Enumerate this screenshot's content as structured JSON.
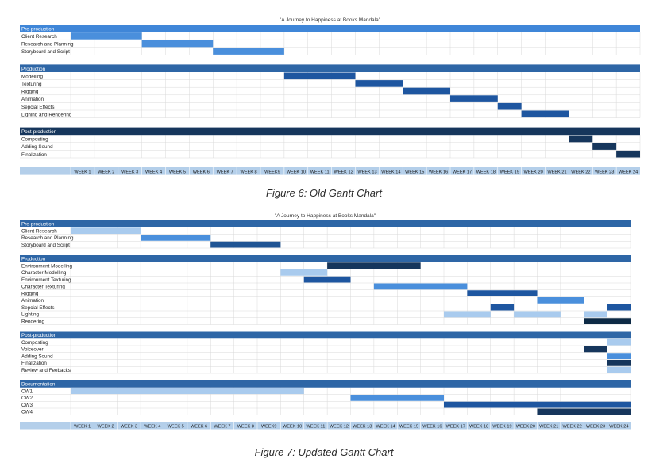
{
  "chart_data": [
    {
      "type": "gantt",
      "title": "\"A Journey to Happiness at Books Mandala\"",
      "caption": "Figure 6: Old Gantt Chart",
      "weeks": [
        "WEEK 1",
        "WEEK 2",
        "WEEK 3",
        "WEEK 4",
        "WEEK 5",
        "WEEK 6",
        "WEEK 7",
        "WEEK 8",
        "WEEK9",
        "WEEK 10",
        "WEEK 11",
        "WEEK 12",
        "WEEK 13",
        "WEEK 14",
        "WEEK 15",
        "WEEK 16",
        "WEEK 17",
        "WEEK 18",
        "WEEK 19",
        "WEEK 20",
        "WEEK 21",
        "WEEK 22",
        "WEEK 23",
        "WEEK 24"
      ],
      "colors": {
        "header": "#2e66a6",
        "header_dark": "#16365c",
        "axis": "#b4cfea",
        "grid": "#d9d9d9"
      },
      "sections": [
        {
          "name": "Pre-production",
          "header_color": "#3f86d8",
          "tasks": [
            {
              "name": "Client Research",
              "start": 1,
              "end": 3,
              "color": "#4a8fdc"
            },
            {
              "name": "Research and Planning",
              "start": 4,
              "end": 6,
              "color": "#4a8fdc"
            },
            {
              "name": "Storyboard and Script",
              "start": 7,
              "end": 9,
              "color": "#4a8fdc"
            }
          ]
        },
        {
          "name": "Production",
          "header_color": "#2e66a6",
          "tasks": [
            {
              "name": "Modelling",
              "start": 10,
              "end": 12,
              "color": "#1e56a0"
            },
            {
              "name": "Texturing",
              "start": 13,
              "end": 14,
              "color": "#1e56a0"
            },
            {
              "name": "Rigging",
              "start": 15,
              "end": 16,
              "color": "#1e56a0"
            },
            {
              "name": "Animation",
              "start": 17,
              "end": 18,
              "color": "#1e56a0"
            },
            {
              "name": "Sepcial Effects",
              "start": 19,
              "end": 19,
              "color": "#1e56a0"
            },
            {
              "name": "Lighing and Rendering",
              "start": 20,
              "end": 21,
              "color": "#1e56a0"
            }
          ]
        },
        {
          "name": "Post-production",
          "header_color": "#16365c",
          "tasks": [
            {
              "name": "Composting",
              "start": 22,
              "end": 22,
              "color": "#16365c"
            },
            {
              "name": "Adding Sound",
              "start": 23,
              "end": 23,
              "color": "#16365c"
            },
            {
              "name": "Finalization",
              "start": 24,
              "end": 24,
              "color": "#16365c"
            }
          ]
        }
      ]
    },
    {
      "type": "gantt",
      "title": "\"A Journey to Happiness at Books Mandala\"",
      "caption": "Figure 7: Updated Gantt Chart",
      "weeks": [
        "WEEK 1",
        "WEEK 2",
        "WEEK 3",
        "WEEK 4",
        "WEEK 5",
        "WEEK 6",
        "WEEK 7",
        "WEEK 8",
        "WEEK9",
        "WEEK 10",
        "WEEK 11",
        "WEEK 12",
        "WEEK 13",
        "WEEK 14",
        "WEEK 15",
        "WEEK 16",
        "WEEK 17",
        "WEEK 18",
        "WEEK 19",
        "WEEK 20",
        "WEEK 21",
        "WEEK 22",
        "WEEK 23",
        "WEEK 24"
      ],
      "colors": {
        "header": "#2e66a6",
        "axis": "#b4cfea",
        "grid": "#d9d9d9"
      },
      "sections": [
        {
          "name": "Pre-production",
          "header_color": "#2e66a6",
          "tasks": [
            {
              "name": "Client Research",
              "start": 1,
              "end": 3,
              "color": "#a9cbee"
            },
            {
              "name": "Research and Planning",
              "start": 4,
              "end": 6,
              "color": "#4a8fdc"
            },
            {
              "name": "Storyboard and Script",
              "start": 7,
              "end": 9,
              "color": "#1f5494"
            }
          ]
        },
        {
          "name": "Production",
          "header_color": "#2e66a6",
          "tasks": [
            {
              "name": "Environment  Modelling",
              "start": 12,
              "end": 15,
              "color": "#16365c"
            },
            {
              "name": "Character Modelling",
              "start": 10,
              "end": 11,
              "color": "#a9cbee"
            },
            {
              "name": "Environment Texturing",
              "start": 11,
              "end": 12,
              "color": "#1e56a0"
            },
            {
              "name": "Character Texturing",
              "start": 14,
              "end": 17,
              "color": "#4a8fdc"
            },
            {
              "name": "Rigging",
              "start": 18,
              "end": 20,
              "color": "#1e56a0"
            },
            {
              "name": "Animation",
              "start": 21,
              "end": 22,
              "color": "#4a8fdc"
            },
            {
              "name": "Sepcial Effects",
              "segments": [
                [
                  19,
                  19,
                  "#1e56a0"
                ],
                [
                  24,
                  24,
                  "#1e56a0"
                ]
              ]
            },
            {
              "name": "Lighting",
              "segments": [
                [
                  17,
                  18,
                  "#a9cbee"
                ],
                [
                  20,
                  21,
                  "#a9cbee"
                ],
                [
                  23,
                  23,
                  "#a9cbee"
                ]
              ]
            },
            {
              "name": "Rendering",
              "segments": [
                [
                  23,
                  23,
                  "#0d2a45"
                ],
                [
                  24,
                  24,
                  "#0d2a45"
                ]
              ]
            }
          ]
        },
        {
          "name": "Post-production",
          "header_color": "#2e66a6",
          "tasks": [
            {
              "name": "Composting",
              "start": 24,
              "end": 24,
              "color": "#a9cbee"
            },
            {
              "name": "Voiceover",
              "start": 23,
              "end": 23,
              "color": "#16365c"
            },
            {
              "name": "Adding Sound",
              "start": 24,
              "end": 24,
              "color": "#4a8fdc"
            },
            {
              "name": "Finalization",
              "start": 24,
              "end": 24,
              "color": "#16365c"
            },
            {
              "name": "Review and Feebacks",
              "start": 24,
              "end": 24,
              "color": "#a9cbee"
            }
          ]
        },
        {
          "name": "Documentation",
          "header_color": "#2e66a6",
          "tasks": [
            {
              "name": "CW1",
              "start": 1,
              "end": 10,
              "color": "#a9cbee"
            },
            {
              "name": "CW2",
              "start": 13,
              "end": 16,
              "color": "#4a8fdc"
            },
            {
              "name": "CW3",
              "start": 17,
              "end": 24,
              "color": "#1e56a0"
            },
            {
              "name": "CW4",
              "start": 21,
              "end": 24,
              "color": "#16365c"
            }
          ]
        }
      ]
    }
  ]
}
